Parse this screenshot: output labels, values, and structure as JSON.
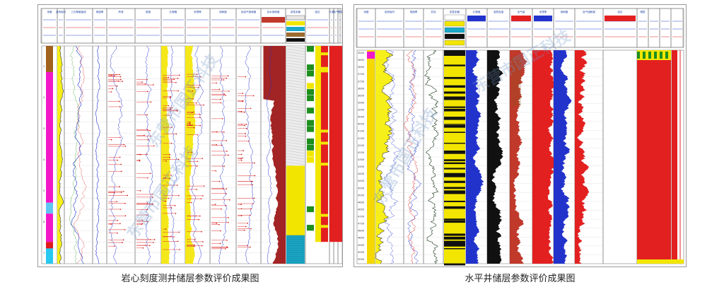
{
  "captions": {
    "left": "岩心刻度测井储层参数评价成果图",
    "right": "水平井储层参数评价成果图"
  },
  "chart_data": [
    {
      "type": "line",
      "title": "岩心刻度测井储层参数评价成果图",
      "depth_axis": "vertical",
      "track_headers": [
        "深度",
        "自然伽马",
        "三孔隙度曲线",
        "电阻率",
        "声波",
        "密度",
        "孔隙度",
        "渗透率",
        "饱和度",
        "含油气饱和度",
        "含水饱和度",
        "岩性剖面",
        "结论",
        "孔隙",
        "含气",
        "储层"
      ],
      "depth_ticks": [
        "1",
        "2",
        "3",
        "4",
        "5",
        "6",
        "7"
      ],
      "core_points": true
    },
    {
      "type": "line",
      "title": "水平井储层参数评价成果图",
      "depth_axis": "vertical",
      "track_headers": [
        "深度",
        "自然伽马",
        "电阻率",
        "井径",
        "岩性剖面",
        "孔隙度",
        "泥质含量",
        "含气量",
        "渗透率",
        "饱和度",
        "含气饱和度",
        "结论",
        "储层"
      ],
      "depth_ticks": [
        "3550",
        "3600",
        "3650",
        "3700",
        "3750",
        "3800",
        "3850",
        "3900",
        "3950",
        "4000",
        "4050",
        "4100",
        "4150",
        "4200",
        "4250",
        "4300",
        "4350",
        "4400",
        "4450",
        "4500",
        "4550",
        "4600",
        "4650",
        "4700",
        "4750",
        "4800",
        "4850",
        "4900",
        "4950",
        "5000"
      ]
    }
  ],
  "watermark": "东营市国正科技"
}
